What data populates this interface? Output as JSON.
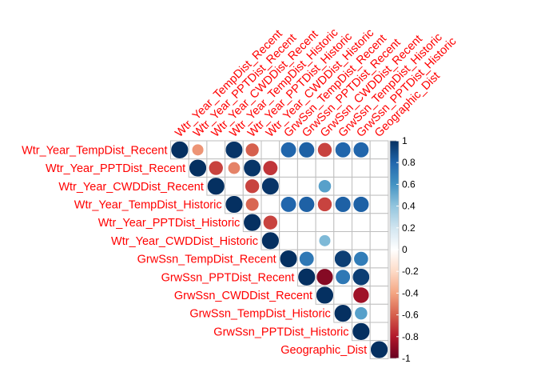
{
  "chart_data": {
    "type": "heatmap",
    "subtype": "correlation-upper-circle",
    "variables": [
      "Wtr_Year_TempDist_Recent",
      "Wtr_Year_PPTDist_Recent",
      "Wtr_Year_CWDDist_Recent",
      "Wtr_Year_TempDist_Historic",
      "Wtr_Year_PPTDist_Historic",
      "Wtr_Year_CWDDist_Historic",
      "GrwSsn_TempDist_Recent",
      "GrwSsn_PPTDist_Recent",
      "GrwSsn_CWDDist_Recent",
      "GrwSsn_TempDist_Historic",
      "GrwSsn_PPTDist_Historic",
      "Geographic_Dist"
    ],
    "matrix": [
      [
        1.0,
        -0.45,
        null,
        0.98,
        -0.6,
        null,
        0.8,
        0.82,
        -0.68,
        0.8,
        0.8,
        null
      ],
      [
        null,
        1.0,
        -0.68,
        -0.5,
        0.98,
        -0.72,
        null,
        null,
        null,
        null,
        null,
        null
      ],
      [
        null,
        null,
        1.0,
        null,
        -0.68,
        0.98,
        null,
        null,
        0.55,
        null,
        null,
        null
      ],
      [
        null,
        null,
        null,
        1.0,
        -0.58,
        null,
        0.8,
        0.82,
        -0.68,
        0.82,
        0.82,
        null
      ],
      [
        null,
        null,
        null,
        null,
        1.0,
        -0.68,
        null,
        null,
        null,
        null,
        null,
        null
      ],
      [
        null,
        null,
        null,
        null,
        null,
        1.0,
        null,
        null,
        0.45,
        null,
        null,
        null
      ],
      [
        null,
        null,
        null,
        null,
        null,
        null,
        1.0,
        0.72,
        null,
        0.95,
        0.7,
        null
      ],
      [
        null,
        null,
        null,
        null,
        null,
        null,
        null,
        1.0,
        -0.92,
        0.72,
        0.95,
        null
      ],
      [
        null,
        null,
        null,
        null,
        null,
        null,
        null,
        null,
        1.0,
        null,
        -0.85,
        null
      ],
      [
        null,
        null,
        null,
        null,
        null,
        null,
        null,
        null,
        null,
        1.0,
        0.55,
        null
      ],
      [
        null,
        null,
        null,
        null,
        null,
        null,
        null,
        null,
        null,
        null,
        1.0,
        null
      ],
      [
        null,
        null,
        null,
        null,
        null,
        null,
        null,
        null,
        null,
        null,
        null,
        1.0
      ]
    ],
    "colorbar": {
      "ticks": [
        "1",
        "0.8",
        "0.6",
        "0.4",
        "0.2",
        "0",
        "-0.2",
        "-0.4",
        "-0.6",
        "-0.8",
        "-1"
      ],
      "range": [
        -1,
        1
      ],
      "colors": [
        "#67001F",
        "#B2182B",
        "#D6604D",
        "#F4A582",
        "#FDDBC7",
        "#FFFFFF",
        "#D1E5F0",
        "#92C5DE",
        "#4393C3",
        "#2166AC",
        "#053061"
      ]
    },
    "label_color": "#FF0000",
    "grid_color": "#BEBEBE"
  }
}
